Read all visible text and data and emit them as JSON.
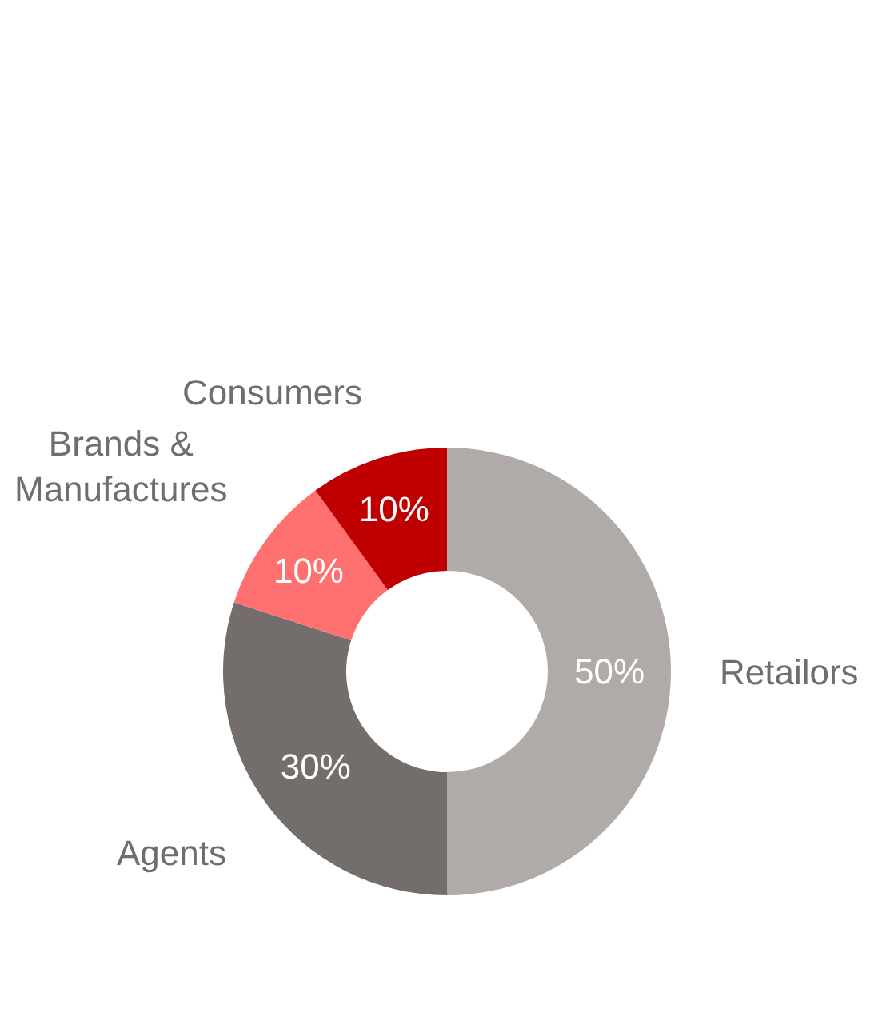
{
  "chart_data": {
    "type": "donut",
    "categories": [
      "Retailors",
      "Agents",
      "Brands & Manufactures",
      "Consumers"
    ],
    "values": [
      50,
      30,
      10,
      10
    ],
    "colors": [
      "#b0aaa8",
      "#736d6b",
      "#ff7070",
      "#c00000"
    ],
    "value_labels": [
      "50%",
      "30%",
      "10%",
      "10%"
    ],
    "legend": false
  }
}
